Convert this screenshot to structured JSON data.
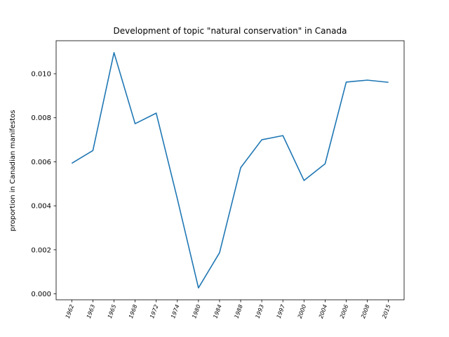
{
  "chart_data": {
    "type": "line",
    "title": "Development of topic \"natural conservation\" in Canada",
    "xlabel": "",
    "ylabel": "proportion in Canadian manifestos",
    "categories": [
      "1962",
      "1963",
      "1965",
      "1968",
      "1972",
      "1974",
      "1980",
      "1984",
      "1988",
      "1993",
      "1997",
      "2000",
      "2004",
      "2006",
      "2008",
      "2015"
    ],
    "series": [
      {
        "values": [
          0.00593,
          0.00651,
          0.01096,
          0.00773,
          0.00821,
          0.00432,
          0.00027,
          0.00187,
          0.00573,
          0.007,
          0.00719,
          0.00515,
          0.00591,
          0.00962,
          0.00971,
          0.00961
        ],
        "color": "#1f77b4"
      }
    ],
    "yticks": [
      "0.000",
      "0.002",
      "0.004",
      "0.006",
      "0.008",
      "0.010"
    ],
    "ylim": [
      -0.00027,
      0.0115
    ],
    "grid": false,
    "legend": "none"
  }
}
